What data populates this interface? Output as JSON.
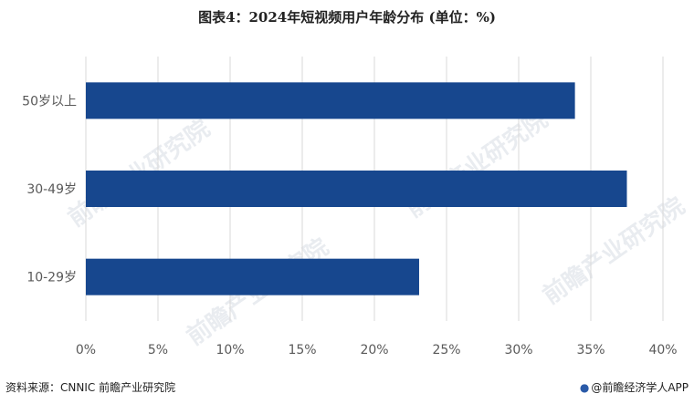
{
  "title": "图表4：2024年短视频用户年龄分布 (单位：%)",
  "colors": {
    "bar": "#17478e",
    "grid": "#d9d9d9",
    "text": "#595959"
  },
  "chart_data": {
    "type": "bar",
    "orientation": "horizontal",
    "categories": [
      "50岁以上",
      "30-49岁",
      "10-29岁"
    ],
    "values": [
      33.9,
      37.5,
      23.1
    ],
    "unit": "%",
    "xlim": [
      0,
      40
    ],
    "xticks": [
      "0%",
      "5%",
      "10%",
      "15%",
      "20%",
      "25%",
      "30%",
      "35%",
      "40%"
    ],
    "grid": "vertical"
  },
  "footer": {
    "source": "资料来源：CNNIC 前瞻产业研究院",
    "brand": "@前瞻经济学人APP"
  },
  "watermark": "前瞻产业研究院"
}
